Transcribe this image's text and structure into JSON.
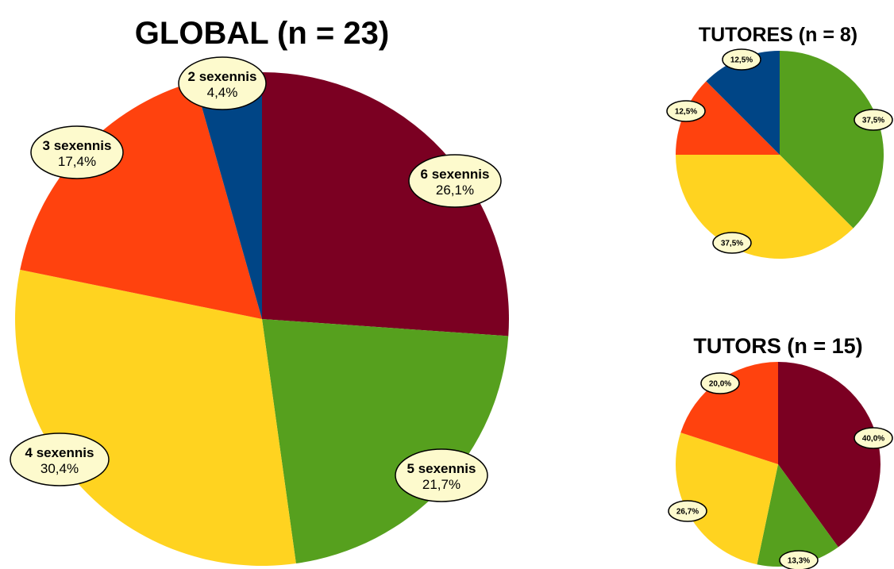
{
  "chart_data": [
    {
      "type": "pie",
      "title": "GLOBAL (n = 23)",
      "start_angle_deg": 0,
      "slices": [
        {
          "label": "6 sexennis",
          "value": 26.1,
          "value_label": "26,1%",
          "color": "#7b0022"
        },
        {
          "label": "5 sexennis",
          "value": 21.7,
          "value_label": "21,7%",
          "color": "#56a01e"
        },
        {
          "label": "4 sexennis",
          "value": 30.4,
          "value_label": "30,4%",
          "color": "#ffd320"
        },
        {
          "label": "3 sexennis",
          "value": 17.4,
          "value_label": "17,4%",
          "color": "#ff420e"
        },
        {
          "label": "2 sexennis",
          "value": 4.4,
          "value_label": "4,4%",
          "color": "#004586"
        }
      ]
    },
    {
      "type": "pie",
      "title": "TUTORES (n = 8)",
      "start_angle_deg": 0,
      "slices": [
        {
          "label": "",
          "value": 37.5,
          "value_label": "37,5%",
          "color": "#56a01e"
        },
        {
          "label": "",
          "value": 37.5,
          "value_label": "37,5%",
          "color": "#ffd320"
        },
        {
          "label": "",
          "value": 12.5,
          "value_label": "12,5%",
          "color": "#ff420e"
        },
        {
          "label": "",
          "value": 12.5,
          "value_label": "12,5%",
          "color": "#004586"
        }
      ]
    },
    {
      "type": "pie",
      "title": "TUTORS (n = 15)",
      "start_angle_deg": 0,
      "slices": [
        {
          "label": "",
          "value": 40.0,
          "value_label": "40,0%",
          "color": "#7b0022"
        },
        {
          "label": "",
          "value": 13.3,
          "value_label": "13,3%",
          "color": "#56a01e"
        },
        {
          "label": "",
          "value": 26.7,
          "value_label": "26,7%",
          "color": "#ffd320"
        },
        {
          "label": "",
          "value": 20.0,
          "value_label": "20,0%",
          "color": "#ff420e"
        }
      ]
    }
  ]
}
